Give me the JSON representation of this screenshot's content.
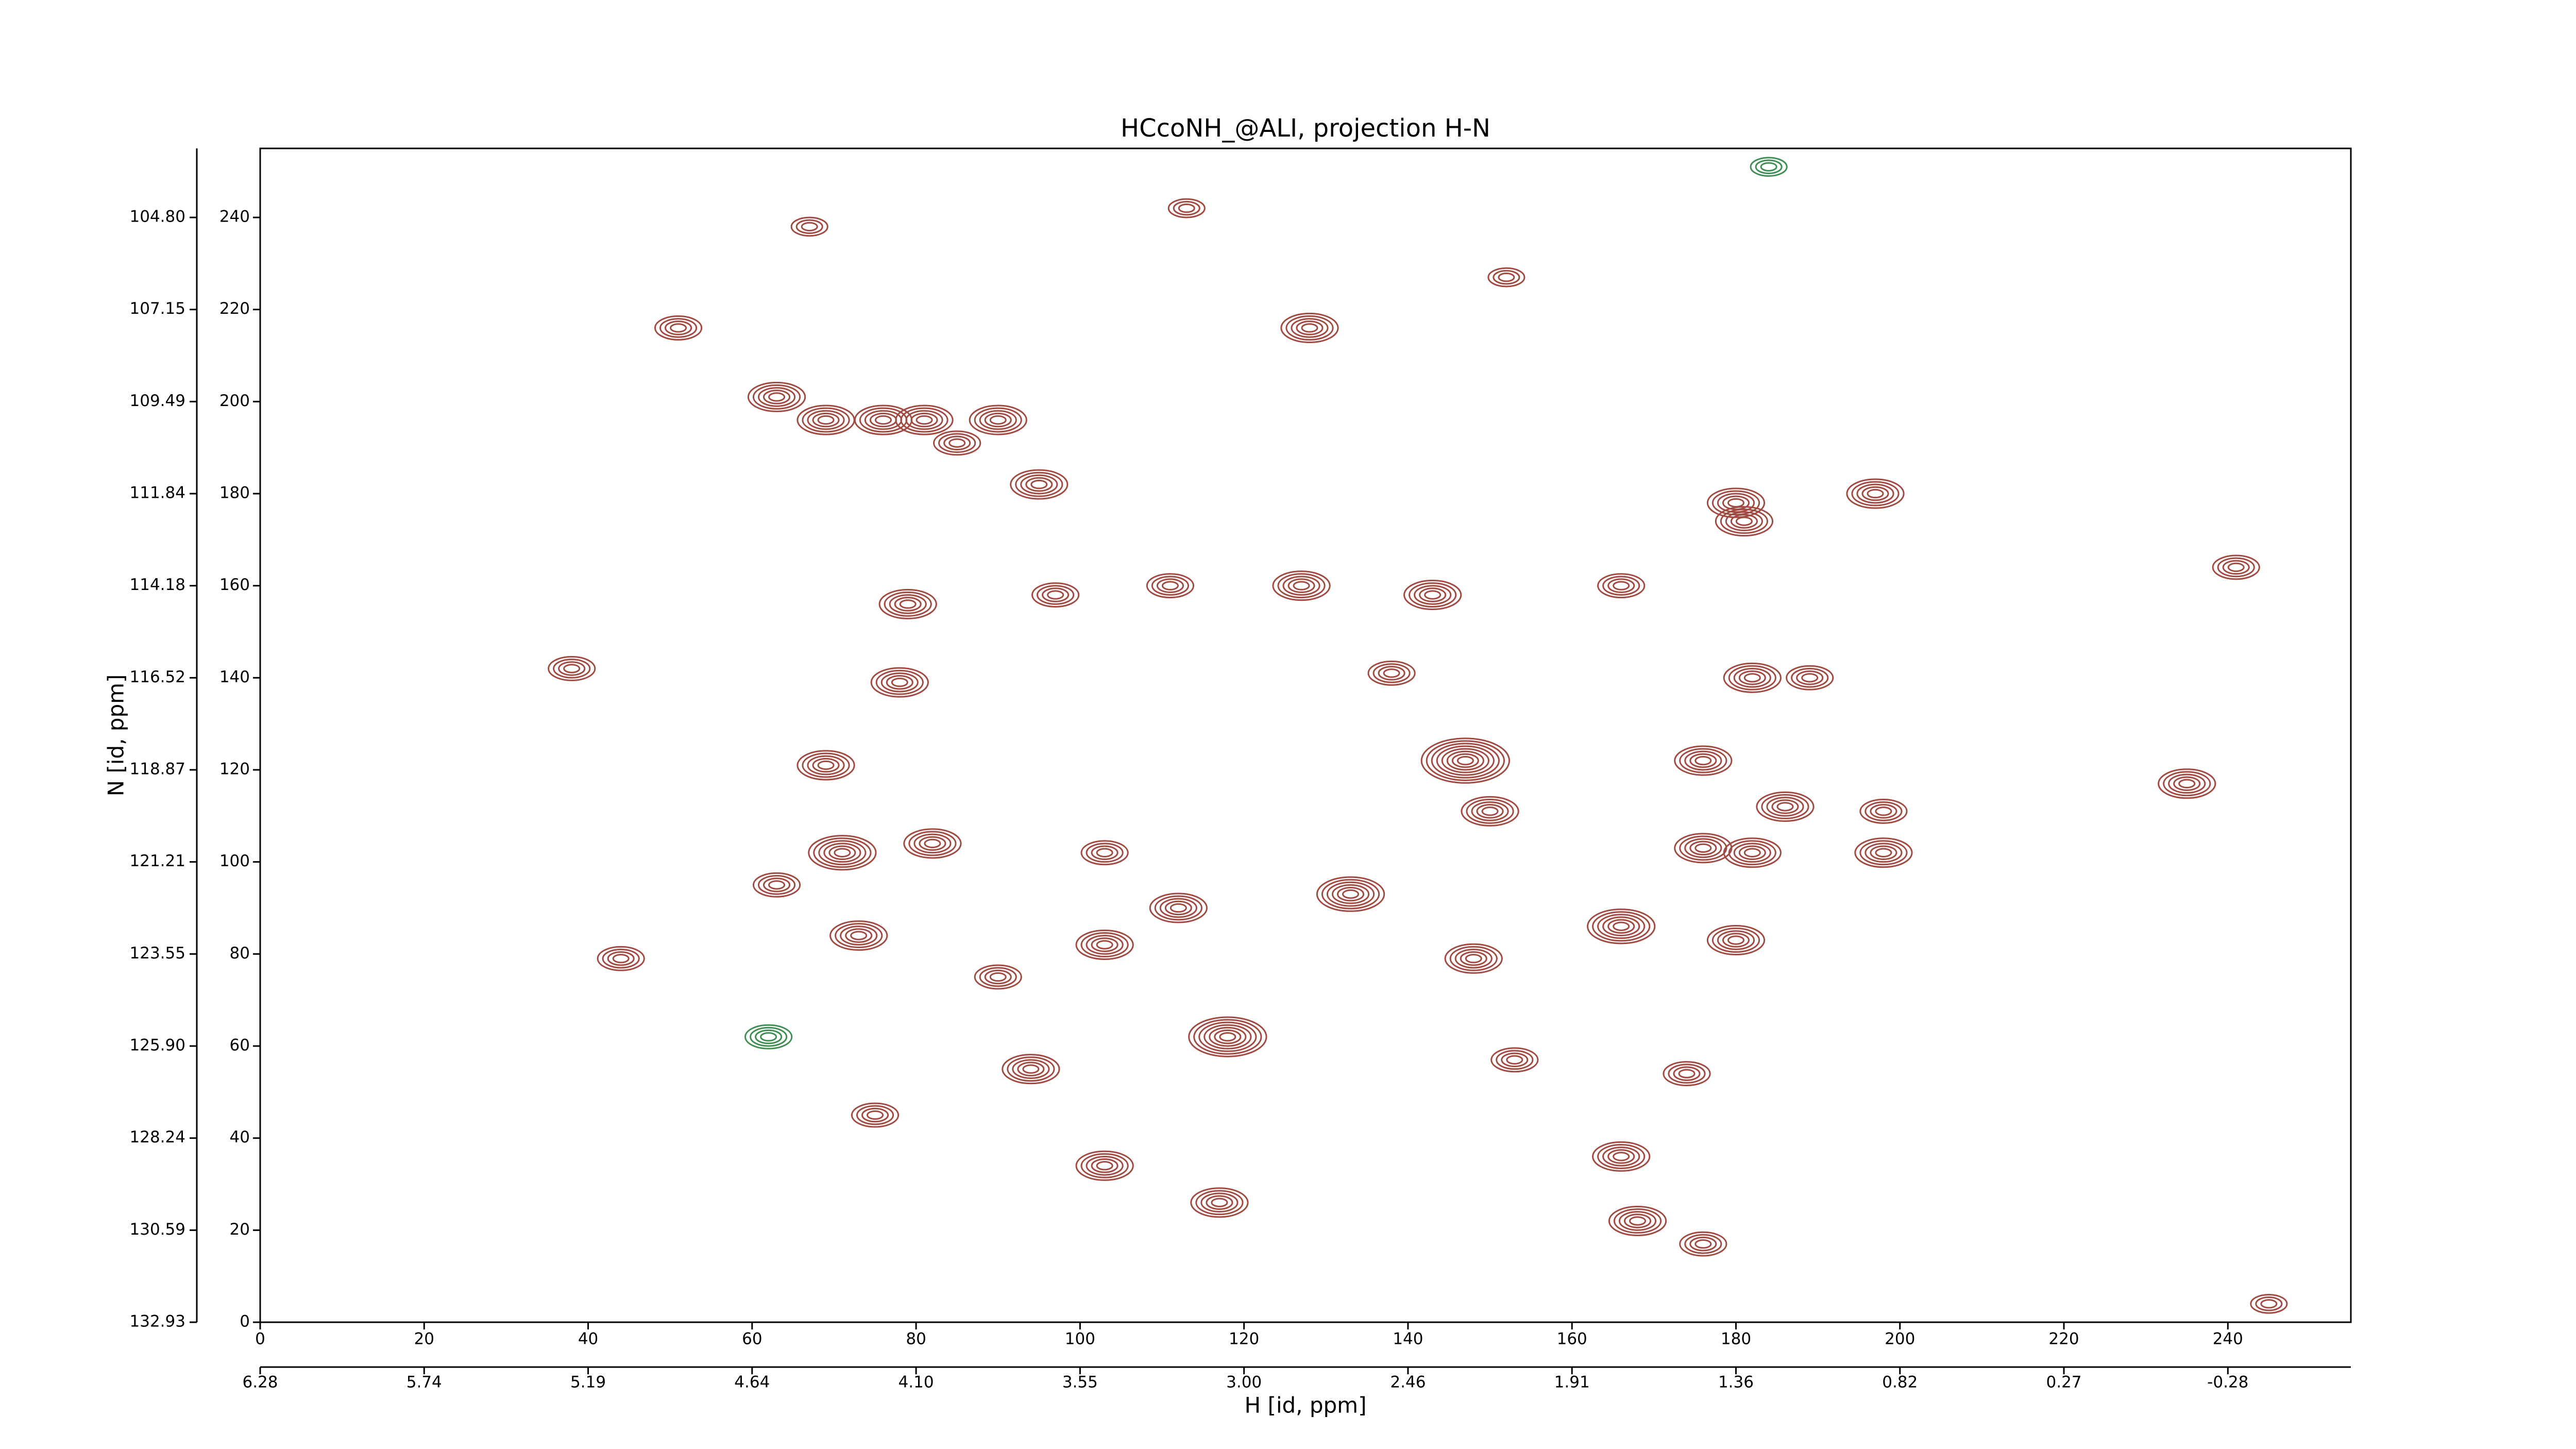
{
  "chart_data": {
    "type": "contour",
    "title": "HCcoNH_@ALI, projection H-N",
    "xlabel": "H [id, ppm]",
    "ylabel": "N [id, ppm]",
    "xlim": [
      0,
      255
    ],
    "ylim": [
      0,
      255
    ],
    "xticks": [
      0,
      20,
      40,
      60,
      80,
      100,
      120,
      140,
      160,
      180,
      200,
      220,
      240
    ],
    "yticks": [
      0,
      20,
      40,
      60,
      80,
      100,
      120,
      140,
      160,
      180,
      200,
      220,
      240
    ],
    "x2ticks": [
      {
        "value": 0,
        "label": "6.28"
      },
      {
        "value": 20,
        "label": "5.74"
      },
      {
        "value": 40,
        "label": "5.19"
      },
      {
        "value": 60,
        "label": "4.64"
      },
      {
        "value": 80,
        "label": "4.10"
      },
      {
        "value": 100,
        "label": "3.55"
      },
      {
        "value": 120,
        "label": "3.00"
      },
      {
        "value": 140,
        "label": "2.46"
      },
      {
        "value": 160,
        "label": "1.91"
      },
      {
        "value": 180,
        "label": "1.36"
      },
      {
        "value": 200,
        "label": "0.82"
      },
      {
        "value": 220,
        "label": "0.27"
      },
      {
        "value": 240,
        "label": "-0.28"
      }
    ],
    "y2ticks": [
      {
        "value": 0,
        "label": "132.93"
      },
      {
        "value": 20,
        "label": "130.59"
      },
      {
        "value": 40,
        "label": "128.24"
      },
      {
        "value": 60,
        "label": "125.90"
      },
      {
        "value": 80,
        "label": "123.55"
      },
      {
        "value": 100,
        "label": "121.21"
      },
      {
        "value": 120,
        "label": "118.87"
      },
      {
        "value": 140,
        "label": "116.52"
      },
      {
        "value": 160,
        "label": "114.18"
      },
      {
        "value": 180,
        "label": "111.84"
      },
      {
        "value": 200,
        "label": "109.49"
      },
      {
        "value": 220,
        "label": "107.15"
      },
      {
        "value": 240,
        "label": "104.80"
      }
    ],
    "series": [
      {
        "color": "#a04a42",
        "x": [
          51,
          128,
          63,
          69,
          76,
          81,
          90,
          85,
          95,
          197,
          180,
          181,
          127,
          143,
          166,
          79,
          97,
          111,
          241,
          38,
          78,
          182,
          189,
          138,
          147,
          176,
          69,
          235,
          186,
          150,
          198,
          71,
          82,
          103,
          176,
          198,
          182,
          63,
          133,
          112,
          166,
          180,
          73,
          103,
          148,
          44,
          90,
          118,
          94,
          153,
          174,
          75,
          166,
          103,
          117,
          168,
          176,
          245,
          67,
          113,
          152
        ],
        "y": [
          216,
          216,
          201,
          196,
          196,
          196,
          196,
          191,
          182,
          180,
          178,
          174,
          160,
          158,
          160,
          156,
          158,
          160,
          164,
          142,
          139,
          140,
          140,
          141,
          122,
          122,
          121,
          117,
          112,
          111,
          111,
          102,
          104,
          102,
          103,
          102,
          102,
          95,
          93,
          90,
          86,
          83,
          84,
          82,
          79,
          79,
          75,
          62,
          55,
          57,
          54,
          45,
          36,
          34,
          26,
          22,
          17,
          4,
          238,
          242,
          227
        ],
        "levels": [
          4,
          5,
          5,
          5,
          5,
          5,
          5,
          4,
          5,
          5,
          5,
          5,
          5,
          5,
          4,
          5,
          4,
          4,
          4,
          4,
          5,
          5,
          4,
          4,
          8,
          5,
          5,
          5,
          5,
          5,
          4,
          6,
          5,
          4,
          5,
          5,
          5,
          4,
          6,
          5,
          6,
          5,
          5,
          5,
          5,
          4,
          4,
          7,
          5,
          4,
          4,
          4,
          5,
          5,
          5,
          5,
          4,
          3,
          3,
          3,
          3
        ]
      },
      {
        "color": "#3f8f55",
        "x": [
          62,
          184
        ],
        "y": [
          62,
          251
        ],
        "levels": [
          4,
          3
        ]
      }
    ]
  }
}
